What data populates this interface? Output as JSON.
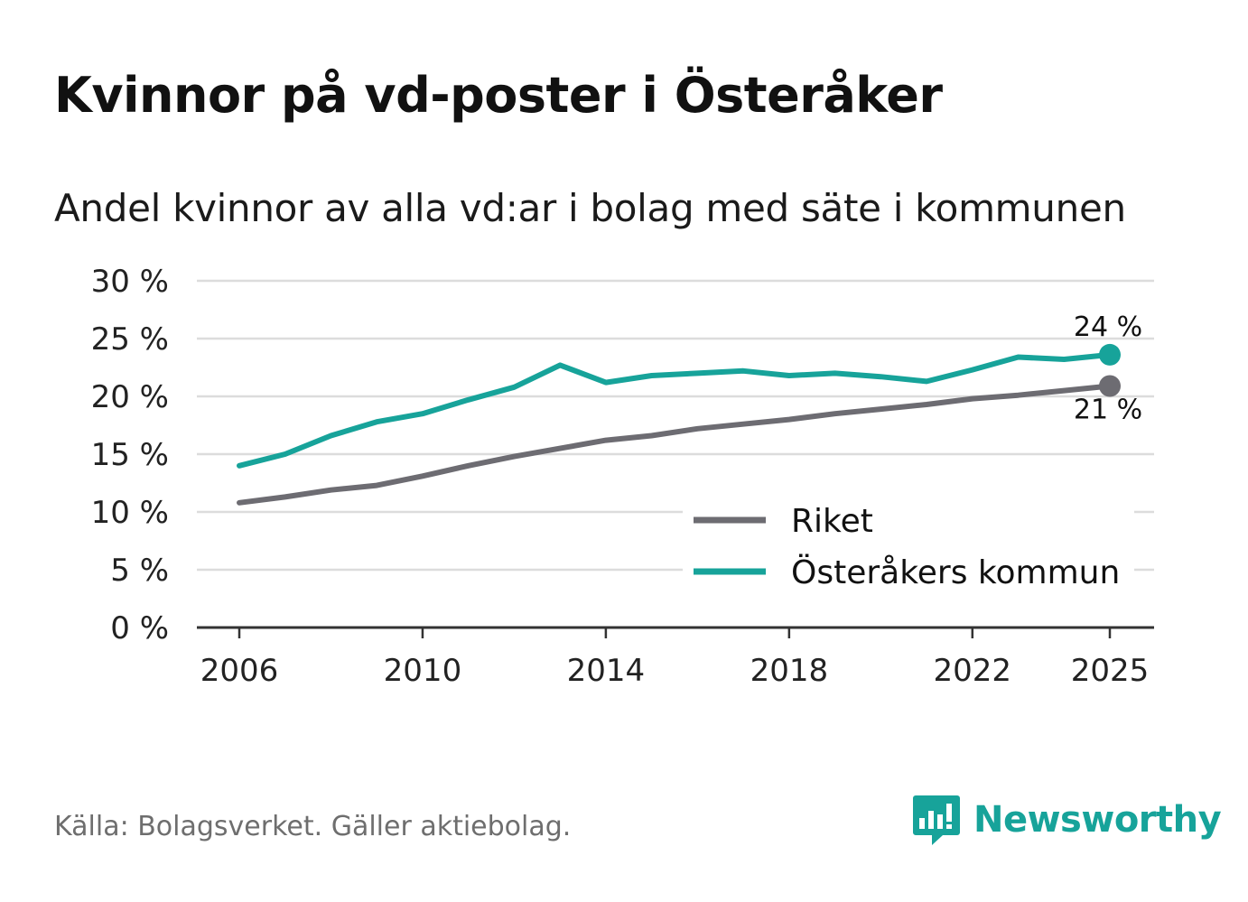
{
  "title": "Kvinnor på vd-poster i Österåker",
  "subtitle": "Andel kvinnor av alla vd:ar i bolag med säte i kommunen",
  "source": "Källa: Bolagsverket. Gäller aktiebolag.",
  "brand": {
    "name": "Newsworthy",
    "icon": "newsworthy-logo-icon"
  },
  "colors": {
    "riket": "#6d6c72",
    "osteraker": "#17a39a",
    "grid": "#dcdcdc",
    "axis": "#333333",
    "text": "#222222"
  },
  "chart_data": {
    "type": "line",
    "title": "Kvinnor på vd-poster i Österåker",
    "subtitle": "Andel kvinnor av alla vd:ar i bolag med säte i kommunen",
    "xlabel": "",
    "ylabel": "",
    "ylim": [
      0,
      30
    ],
    "xlim": [
      2006,
      2025
    ],
    "yticks": [
      0,
      5,
      10,
      15,
      20,
      25,
      30
    ],
    "ytick_labels": [
      "0 %",
      "5 %",
      "10 %",
      "15 %",
      "20 %",
      "25 %",
      "30 %"
    ],
    "xticks": [
      2006,
      2010,
      2014,
      2018,
      2022,
      2025
    ],
    "xtick_labels": [
      "2006",
      "2010",
      "2014",
      "2018",
      "2022",
      "2025"
    ],
    "grid": true,
    "legend_position": "bottom-right",
    "x": [
      2006,
      2007,
      2008,
      2009,
      2010,
      2011,
      2012,
      2013,
      2014,
      2015,
      2016,
      2017,
      2018,
      2019,
      2020,
      2021,
      2022,
      2023,
      2024,
      2025
    ],
    "series": [
      {
        "name": "Riket",
        "key": "riket",
        "values": [
          10.8,
          11.3,
          11.9,
          12.3,
          13.1,
          14.0,
          14.8,
          15.5,
          16.2,
          16.6,
          17.2,
          17.6,
          18.0,
          18.5,
          18.9,
          19.3,
          19.8,
          20.1,
          20.5,
          20.9
        ],
        "end_label": "21 %"
      },
      {
        "name": "Österåkers kommun",
        "key": "osteraker",
        "values": [
          14.0,
          15.0,
          16.6,
          17.8,
          18.5,
          19.7,
          20.8,
          22.7,
          21.2,
          21.8,
          22.0,
          22.2,
          21.8,
          22.0,
          21.7,
          21.3,
          22.3,
          23.4,
          23.2,
          23.6
        ],
        "end_label": "24 %"
      }
    ]
  }
}
